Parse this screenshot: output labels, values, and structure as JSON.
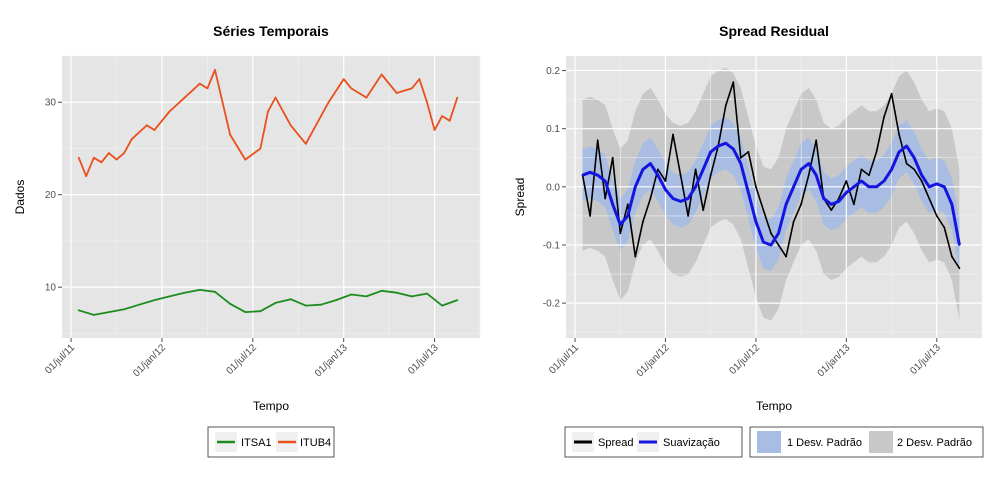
{
  "chart_data": [
    {
      "type": "line",
      "title": "Séries Temporais",
      "xlabel": "Tempo",
      "ylabel": "Dados",
      "x_ticks": [
        "01/jul/11",
        "01/jan/12",
        "01/jul/12",
        "01/jan/13",
        "01/jul/13"
      ],
      "x_range_months": [
        -0.6,
        27.0
      ],
      "ylim": [
        4.5,
        35.0
      ],
      "y_ticks": [
        10,
        20,
        30
      ],
      "grid": true,
      "legend_position": "bottom",
      "series": [
        {
          "name": "ITSA1",
          "color": "#1e8b1e",
          "x_months": [
            0.5,
            1.5,
            2.5,
            3.5,
            4.5,
            5.5,
            6.5,
            7.5,
            8.5,
            9.5,
            10.5,
            11.5,
            12.5,
            13.5,
            14.5,
            15.5,
            16.5,
            17.5,
            18.5,
            19.5,
            20.5,
            21.5,
            22.5,
            23.5,
            24.5,
            25.5
          ],
          "values": [
            7.5,
            7.0,
            7.3,
            7.6,
            8.1,
            8.6,
            9.0,
            9.4,
            9.7,
            9.5,
            8.2,
            7.3,
            7.4,
            8.3,
            8.7,
            8.0,
            8.1,
            8.6,
            9.2,
            9.0,
            9.6,
            9.4,
            9.0,
            9.3,
            8.0,
            8.6
          ]
        },
        {
          "name": "ITUB4",
          "color": "#e8501e",
          "x_months": [
            0.5,
            1.0,
            1.5,
            2.0,
            2.5,
            3.0,
            3.5,
            4.0,
            5.0,
            5.5,
            6.5,
            7.5,
            8.5,
            9.0,
            9.5,
            10.0,
            10.5,
            11.5,
            12.5,
            13.0,
            13.5,
            14.5,
            15.5,
            16.5,
            17.0,
            18.0,
            18.5,
            19.5,
            20.5,
            21.5,
            22.5,
            23.0,
            23.5,
            24.0,
            24.5,
            25.0,
            25.5
          ],
          "values": [
            24.0,
            22.0,
            24.0,
            23.5,
            24.5,
            23.8,
            24.5,
            26.0,
            27.5,
            27.0,
            29.0,
            30.5,
            32.0,
            31.5,
            33.5,
            30.0,
            26.5,
            23.8,
            25.0,
            29.0,
            30.5,
            27.5,
            25.5,
            28.5,
            30.0,
            32.5,
            31.5,
            30.5,
            33.0,
            31.0,
            31.5,
            32.5,
            30.0,
            27.0,
            28.5,
            28.0,
            30.5
          ]
        }
      ]
    },
    {
      "type": "line",
      "title": "Spread Residual",
      "xlabel": "Tempo",
      "ylabel": "Spread",
      "x_ticks": [
        "01/jul/11",
        "01/jan/12",
        "01/jul/12",
        "01/jan/13",
        "01/jul/13"
      ],
      "x_range_months": [
        -0.6,
        27.0
      ],
      "ylim": [
        -0.26,
        0.225
      ],
      "y_ticks": [
        "-0.2",
        "-0.1",
        "0.0",
        "0.1",
        "0.2"
      ],
      "grid": true,
      "legend_position": "bottom",
      "series": [
        {
          "name": "Spread",
          "color": "#000000",
          "x_months": [
            0.5,
            1.0,
            1.5,
            2.0,
            2.5,
            3.0,
            3.5,
            4.0,
            4.5,
            5.0,
            5.5,
            6.0,
            6.5,
            7.0,
            7.5,
            8.0,
            8.5,
            9.0,
            9.5,
            10.0,
            10.5,
            11.0,
            11.5,
            12.0,
            12.5,
            13.0,
            13.5,
            14.0,
            14.5,
            15.0,
            15.5,
            16.0,
            16.5,
            17.0,
            17.5,
            18.0,
            18.5,
            19.0,
            19.5,
            20.0,
            20.5,
            21.0,
            21.5,
            22.0,
            22.5,
            23.0,
            23.5,
            24.0,
            24.5,
            25.0,
            25.5
          ],
          "values": [
            0.02,
            -0.05,
            0.08,
            -0.02,
            0.05,
            -0.08,
            -0.03,
            -0.12,
            -0.06,
            -0.02,
            0.03,
            0.01,
            0.09,
            0.02,
            -0.05,
            0.03,
            -0.04,
            0.02,
            0.07,
            0.14,
            0.18,
            0.05,
            0.06,
            0.0,
            -0.04,
            -0.08,
            -0.1,
            -0.12,
            -0.06,
            -0.03,
            0.02,
            0.08,
            -0.02,
            -0.04,
            -0.02,
            0.01,
            -0.03,
            0.03,
            0.02,
            0.06,
            0.12,
            0.16,
            0.09,
            0.04,
            0.03,
            0.01,
            -0.02,
            -0.05,
            -0.07,
            -0.12,
            -0.14
          ]
        },
        {
          "name": "Suavização",
          "color": "#1515e0",
          "x_months": [
            0.5,
            1.0,
            1.5,
            2.0,
            2.5,
            3.0,
            3.5,
            4.0,
            4.5,
            5.0,
            5.5,
            6.0,
            6.5,
            7.0,
            7.5,
            8.0,
            8.5,
            9.0,
            9.5,
            10.0,
            10.5,
            11.0,
            11.5,
            12.0,
            12.5,
            13.0,
            13.5,
            14.0,
            14.5,
            15.0,
            15.5,
            16.0,
            16.5,
            17.0,
            17.5,
            18.0,
            18.5,
            19.0,
            19.5,
            20.0,
            20.5,
            21.0,
            21.5,
            22.0,
            22.5,
            23.0,
            23.5,
            24.0,
            24.5,
            25.0,
            25.5
          ],
          "values": [
            0.02,
            0.025,
            0.02,
            0.01,
            -0.03,
            -0.065,
            -0.05,
            0.0,
            0.03,
            0.04,
            0.02,
            -0.005,
            -0.02,
            -0.025,
            -0.02,
            0.0,
            0.03,
            0.06,
            0.07,
            0.075,
            0.065,
            0.04,
            -0.01,
            -0.06,
            -0.095,
            -0.1,
            -0.08,
            -0.03,
            0.0,
            0.03,
            0.04,
            0.02,
            -0.02,
            -0.03,
            -0.025,
            -0.01,
            0.0,
            0.01,
            0.0,
            0.0,
            0.01,
            0.03,
            0.06,
            0.07,
            0.05,
            0.02,
            0.0,
            0.005,
            0.0,
            -0.03,
            -0.1
          ]
        }
      ],
      "bands": [
        {
          "name": "1 Desv. Padrão",
          "color": "#a9bde2",
          "half_width": 0.045
        },
        {
          "name": "2 Desv. Padrão",
          "color": "#c8c8c8",
          "half_width": 0.13
        }
      ]
    }
  ]
}
